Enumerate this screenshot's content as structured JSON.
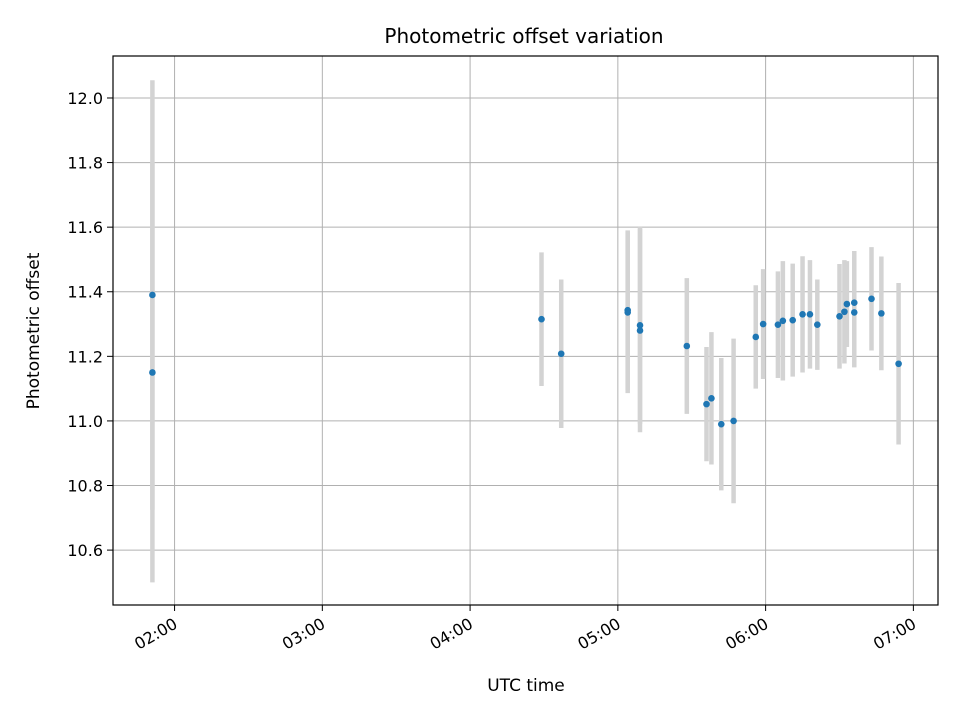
{
  "chart_data": {
    "type": "scatter",
    "title": "Photometric offset variation",
    "xlabel": "UTC time",
    "ylabel": "Photometric offset",
    "x_axis_type": "time",
    "xlim": [
      "01:35",
      "07:10"
    ],
    "ylim": [
      10.43,
      12.13
    ],
    "xticks": [
      "02:00",
      "03:00",
      "04:00",
      "05:00",
      "06:00",
      "07:00"
    ],
    "yticks": [
      10.6,
      10.8,
      11.0,
      11.2,
      11.4,
      11.6,
      11.8,
      12.0
    ],
    "grid": true,
    "marker_color": "#1f77b4",
    "errorbar_color": "#d3d3d3",
    "points": [
      {
        "x": "01:51",
        "y": 11.39,
        "err": 0.665
      },
      {
        "x": "01:51",
        "y": 11.15,
        "err": 0.65
      },
      {
        "x": "04:29",
        "y": 11.315,
        "err": 0.207
      },
      {
        "x": "04:37",
        "y": 11.208,
        "err": 0.23
      },
      {
        "x": "05:04",
        "y": 11.343,
        "err": 0.247
      },
      {
        "x": "05:04",
        "y": 11.336,
        "err": 0.25
      },
      {
        "x": "05:09",
        "y": 11.296,
        "err": 0.305
      },
      {
        "x": "05:09",
        "y": 11.28,
        "err": 0.315
      },
      {
        "x": "05:28",
        "y": 11.232,
        "err": 0.21
      },
      {
        "x": "05:36",
        "y": 11.052,
        "err": 0.177
      },
      {
        "x": "05:38",
        "y": 11.07,
        "err": 0.205
      },
      {
        "x": "05:42",
        "y": 10.99,
        "err": 0.205
      },
      {
        "x": "05:47",
        "y": 11.0,
        "err": 0.255
      },
      {
        "x": "05:56",
        "y": 11.26,
        "err": 0.16
      },
      {
        "x": "05:59",
        "y": 11.3,
        "err": 0.17
      },
      {
        "x": "06:05",
        "y": 11.298,
        "err": 0.165
      },
      {
        "x": "06:07",
        "y": 11.31,
        "err": 0.185
      },
      {
        "x": "06:11",
        "y": 11.312,
        "err": 0.175
      },
      {
        "x": "06:15",
        "y": 11.33,
        "err": 0.18
      },
      {
        "x": "06:18",
        "y": 11.33,
        "err": 0.168
      },
      {
        "x": "06:21",
        "y": 11.298,
        "err": 0.14
      },
      {
        "x": "06:30",
        "y": 11.324,
        "err": 0.162
      },
      {
        "x": "06:32",
        "y": 11.338,
        "err": 0.16
      },
      {
        "x": "06:33",
        "y": 11.362,
        "err": 0.133
      },
      {
        "x": "06:36",
        "y": 11.366,
        "err": 0.16
      },
      {
        "x": "06:36",
        "y": 11.336,
        "err": 0.17
      },
      {
        "x": "06:43",
        "y": 11.378,
        "err": 0.16
      },
      {
        "x": "06:47",
        "y": 11.333,
        "err": 0.176
      },
      {
        "x": "06:54",
        "y": 11.177,
        "err": 0.25
      }
    ]
  }
}
